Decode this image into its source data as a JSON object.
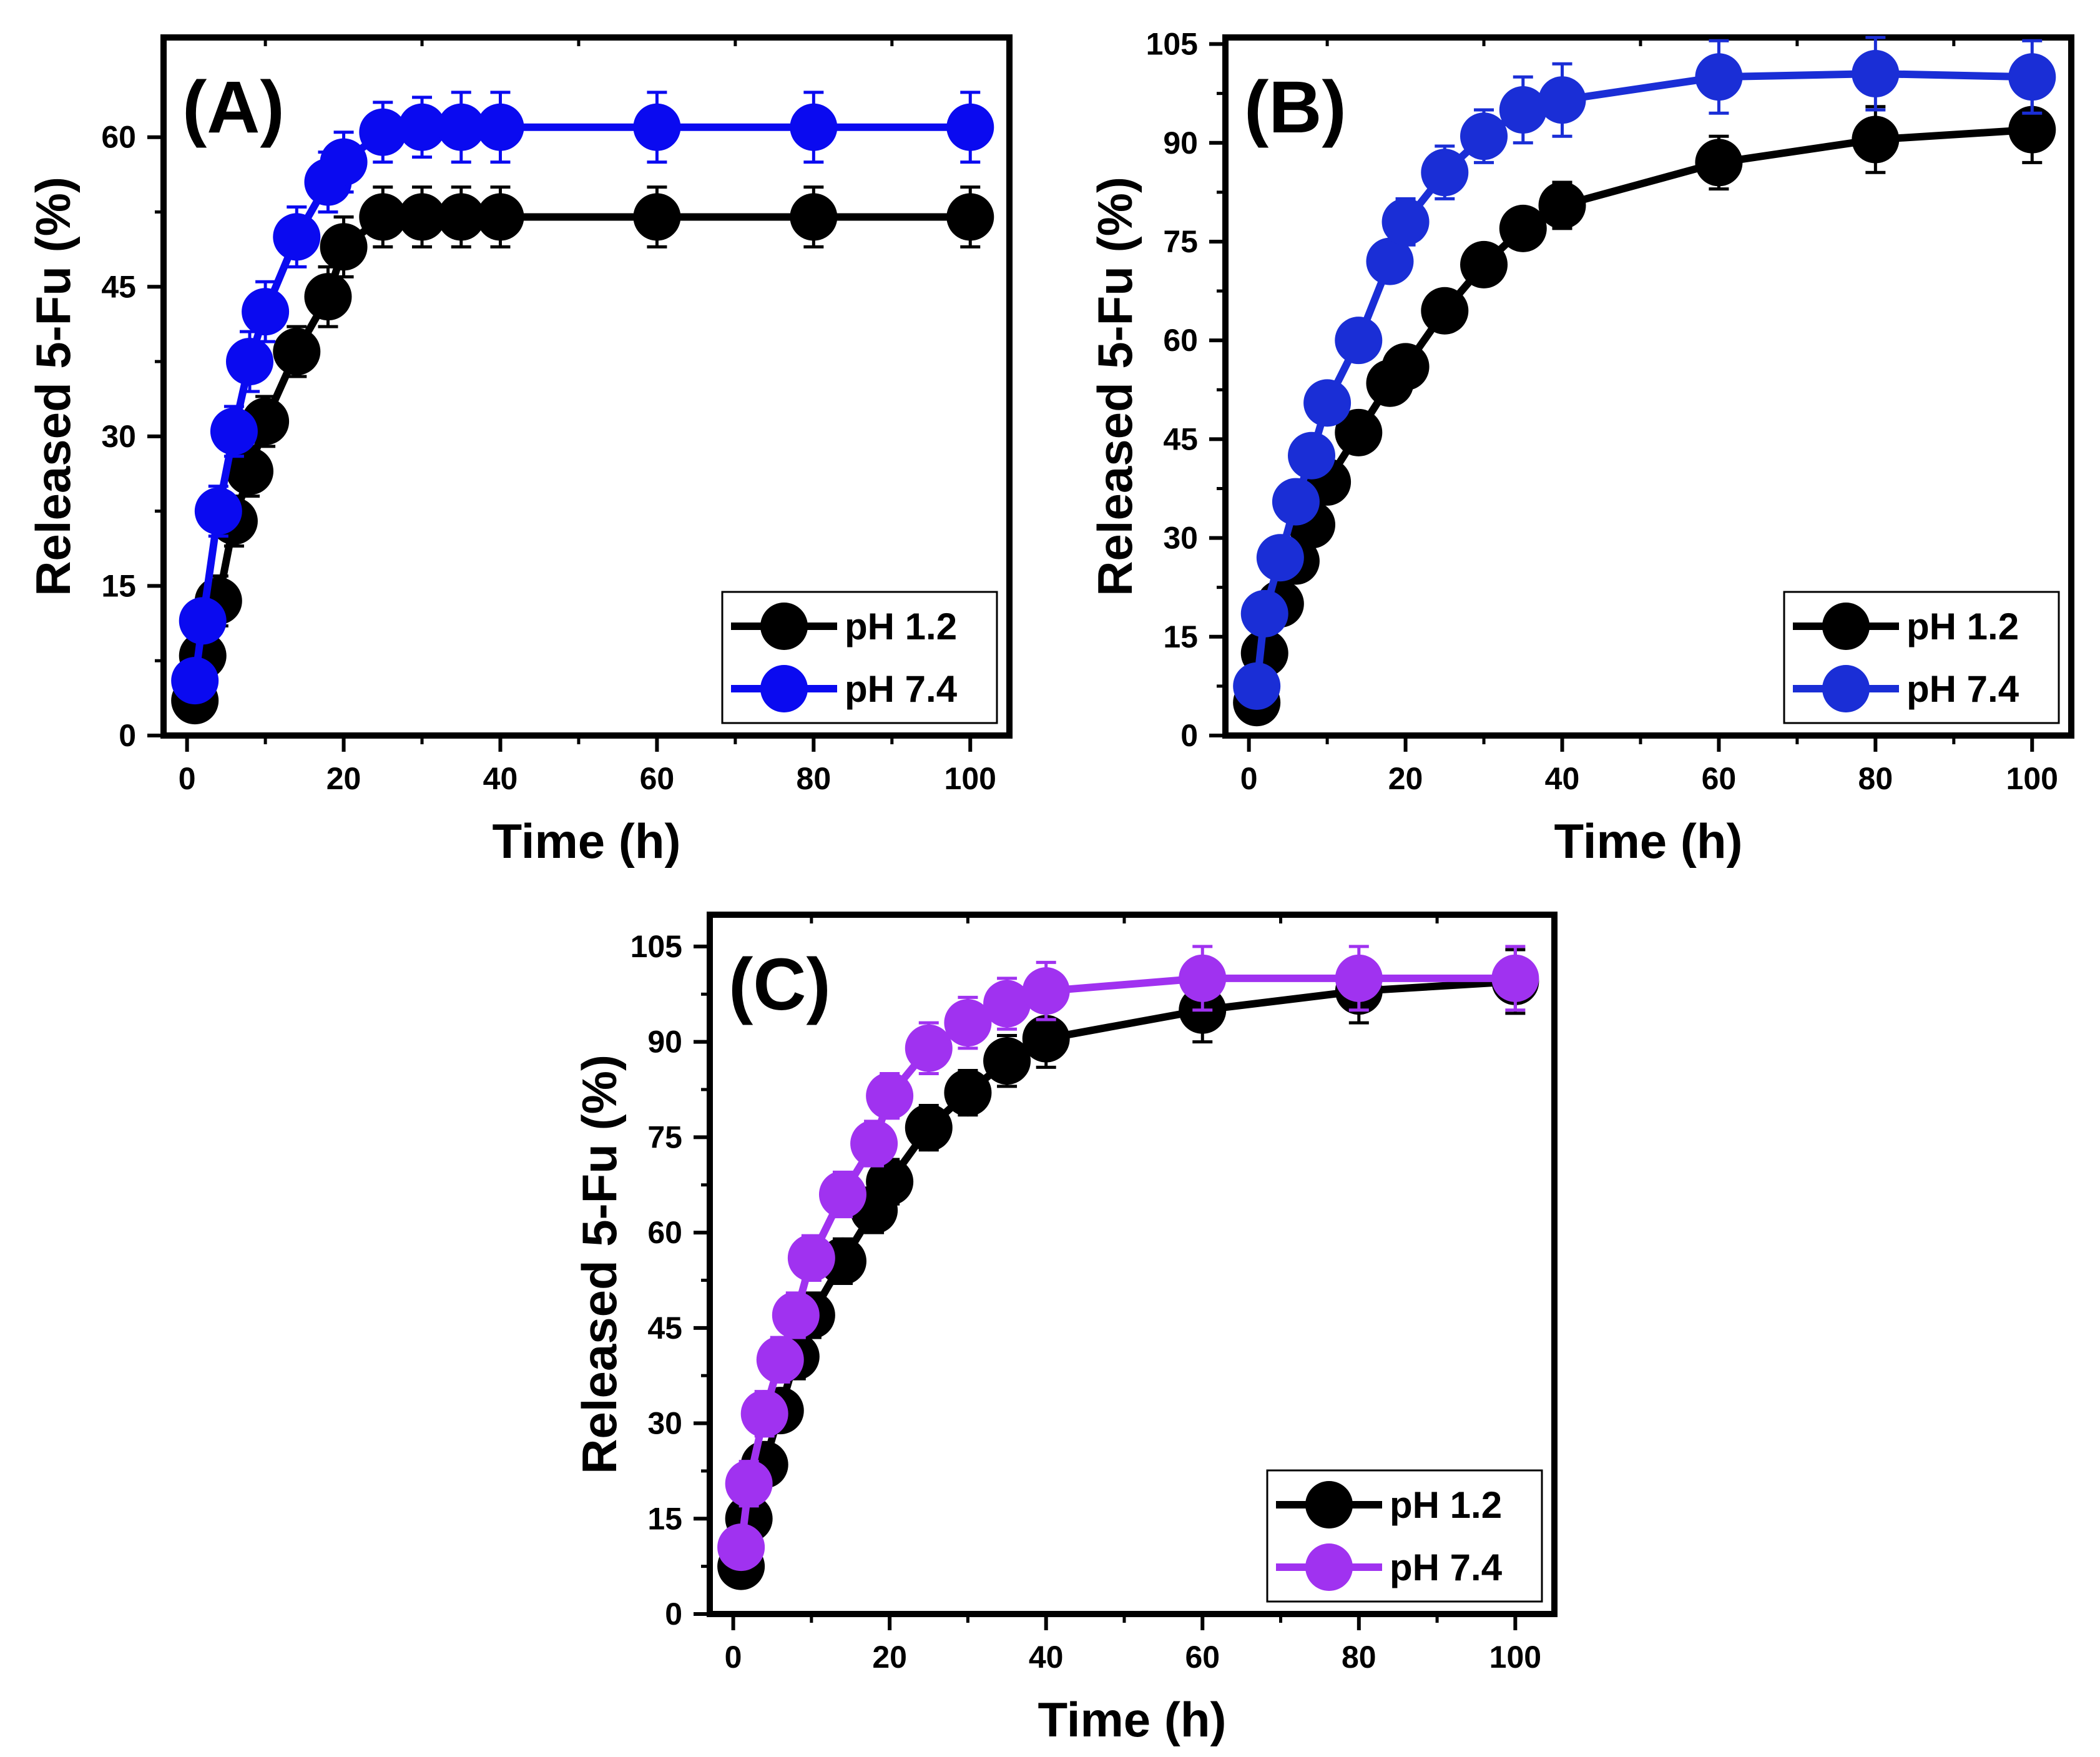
{
  "chart_data": [
    {
      "type": "line",
      "panel_label": "(A)",
      "xlabel": "Time (h)",
      "ylabel": "Released 5-Fu (%)",
      "xlim": [
        -3,
        105
      ],
      "ylim": [
        0,
        70
      ],
      "xticks": [
        0,
        20,
        40,
        60,
        80,
        100
      ],
      "yticks": [
        0,
        15,
        30,
        45,
        60
      ],
      "legend_position": "bottom-right",
      "series": [
        {
          "name": "pH 1.2",
          "color": "#000000",
          "x": [
            1,
            2,
            4,
            6,
            8,
            10,
            14,
            18,
            20,
            25,
            30,
            35,
            40,
            60,
            80,
            100
          ],
          "y": [
            3.5,
            8,
            13.5,
            21.5,
            26.5,
            31.5,
            38.5,
            44,
            49,
            52,
            52,
            52,
            52,
            52,
            52,
            52
          ],
          "error": [
            1.5,
            2,
            2.5,
            2.5,
            2.5,
            2.5,
            2.5,
            3,
            3,
            3,
            3,
            3,
            3,
            3,
            3,
            3
          ]
        },
        {
          "name": "pH 7.4",
          "color": "#0a0af0",
          "x": [
            1,
            2,
            4,
            6,
            8,
            10,
            14,
            18,
            20,
            25,
            30,
            35,
            40,
            60,
            80,
            100
          ],
          "y": [
            5.5,
            11.5,
            22.5,
            30.5,
            37.5,
            42.5,
            50,
            55.5,
            57.5,
            60.5,
            61,
            61,
            61,
            61,
            61,
            61
          ],
          "error": [
            2,
            2,
            2.5,
            2.5,
            3,
            3,
            3,
            3,
            3,
            3,
            3,
            3.5,
            3.5,
            3.5,
            3.5,
            3.5
          ]
        }
      ]
    },
    {
      "type": "line",
      "panel_label": "(B)",
      "xlabel": "Time (h)",
      "ylabel": "Released 5-Fu (%)",
      "xlim": [
        -3,
        105
      ],
      "ylim": [
        0,
        106
      ],
      "xticks": [
        0,
        20,
        40,
        60,
        80,
        100
      ],
      "yticks": [
        0,
        15,
        30,
        45,
        60,
        75,
        90,
        105
      ],
      "legend_position": "bottom-right",
      "series": [
        {
          "name": "pH 1.2",
          "color": "#000000",
          "x": [
            1,
            2,
            4,
            6,
            8,
            10,
            14,
            18,
            20,
            25,
            30,
            35,
            40,
            60,
            80,
            100
          ],
          "y": [
            5,
            12.5,
            20,
            26.5,
            32,
            38.5,
            46,
            53.5,
            56,
            64.5,
            71.5,
            77,
            80.5,
            87,
            90.5,
            92
          ],
          "error": [
            2,
            2.5,
            3,
            3,
            3,
            3,
            3,
            3,
            3,
            3,
            3,
            3,
            3.5,
            4,
            5,
            5
          ]
        },
        {
          "name": "pH 7.4",
          "color": "#1a2ed6",
          "x": [
            1,
            2,
            4,
            6,
            8,
            10,
            14,
            18,
            20,
            25,
            30,
            35,
            40,
            60,
            80,
            100
          ],
          "y": [
            7.5,
            18.5,
            27,
            35.5,
            42.5,
            50.5,
            60,
            72,
            78,
            85.5,
            91,
            95,
            96.5,
            100,
            100.5,
            100
          ],
          "error": [
            2.5,
            3,
            3,
            3,
            3,
            3,
            3,
            3,
            3.5,
            4,
            4,
            5,
            5.5,
            5.5,
            5.5,
            5.5
          ]
        }
      ]
    },
    {
      "type": "line",
      "panel_label": "(C)",
      "xlabel": "Time (h)",
      "ylabel": "Released 5-Fu (%)",
      "xlim": [
        -3,
        105
      ],
      "ylim": [
        0,
        110
      ],
      "xticks": [
        0,
        20,
        40,
        60,
        80,
        100
      ],
      "yticks": [
        0,
        15,
        30,
        45,
        60,
        75,
        90,
        105
      ],
      "legend_position": "bottom-right",
      "series": [
        {
          "name": "pH 1.2",
          "color": "#000000",
          "x": [
            1,
            2,
            4,
            6,
            8,
            10,
            14,
            18,
            20,
            25,
            30,
            35,
            40,
            60,
            80,
            100
          ],
          "y": [
            7.5,
            15,
            23.5,
            32,
            40.5,
            47,
            55.5,
            63.5,
            68,
            76.5,
            82,
            87,
            90.5,
            95,
            98,
            99.5
          ],
          "error": [
            2,
            3,
            3,
            3,
            3.5,
            3.5,
            3.5,
            3.5,
            3.5,
            3.5,
            3.5,
            4,
            4.5,
            5,
            5,
            5
          ]
        },
        {
          "name": "pH 7.4",
          "color": "#a032f0",
          "x": [
            1,
            2,
            4,
            6,
            8,
            10,
            14,
            18,
            20,
            25,
            30,
            35,
            40,
            60,
            80,
            100
          ],
          "y": [
            10.5,
            20.5,
            31.5,
            40,
            47,
            56,
            66,
            74,
            81.5,
            89,
            93,
            96,
            98,
            100,
            100,
            100
          ],
          "error": [
            3,
            3.5,
            3.5,
            3.5,
            3.5,
            3.5,
            3.5,
            3.5,
            3.5,
            4,
            4,
            4,
            4.5,
            5,
            5,
            5
          ]
        }
      ]
    }
  ]
}
